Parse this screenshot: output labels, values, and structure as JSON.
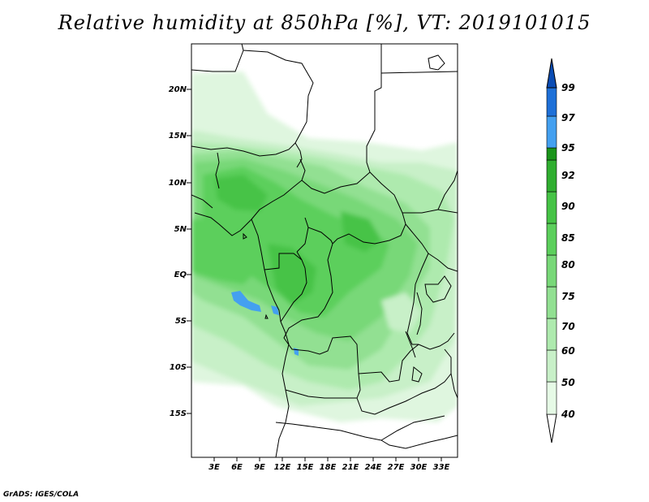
{
  "title": "Relative humidity at 850hPa [%], VT: 2019101015",
  "credit": "GrADS: IGES/COLA",
  "lat_labels": [
    "20N",
    "15N",
    "10N",
    "5N",
    "EQ",
    "5S",
    "10S",
    "15S"
  ],
  "lon_labels": [
    "3E",
    "6E",
    "9E",
    "12E",
    "15E",
    "18E",
    "21E",
    "24E",
    "27E",
    "30E",
    "33E"
  ],
  "colorbar": {
    "levels": [
      "40",
      "50",
      "60",
      "70",
      "75",
      "80",
      "85",
      "90",
      "92",
      "95",
      "97",
      "99"
    ],
    "colors": [
      "#ffffff",
      "#e6fae6",
      "#c8f0c8",
      "#aeeaae",
      "#92e092",
      "#78d878",
      "#5ccf5c",
      "#46c346",
      "#30ae30",
      "#1a941a",
      "#44a0f0",
      "#1e70d8",
      "#0a4cb4"
    ]
  },
  "map_extent": {
    "lon_min": 0,
    "lon_max": 35,
    "lat_min": -20,
    "lat_max": 24.5
  }
}
